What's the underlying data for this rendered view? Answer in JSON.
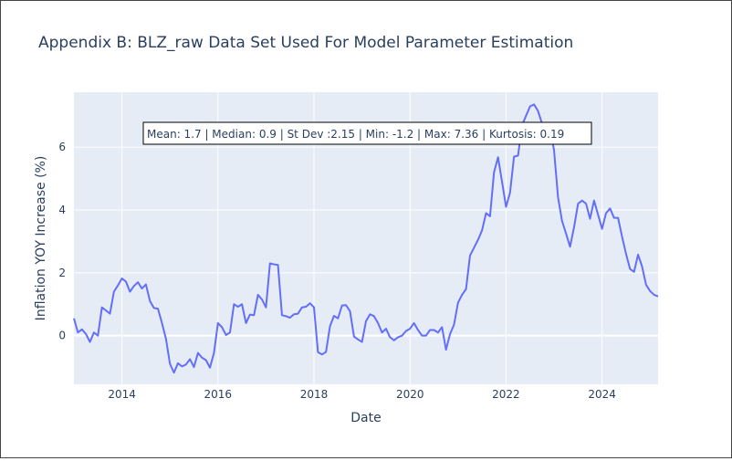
{
  "chart_data": {
    "type": "line",
    "title": "Appendix B: BLZ_raw Data Set Used For Model Parameter Estimation",
    "xlabel": "Date",
    "ylabel": "Inflation YOY Increase (%)",
    "x_range": [
      "2013-01",
      "2025-03"
    ],
    "ylim": [
      -1.55,
      7.75
    ],
    "x_ticks": [
      "2014",
      "2016",
      "2018",
      "2020",
      "2022",
      "2024"
    ],
    "y_ticks": [
      "0",
      "2",
      "4",
      "6"
    ],
    "grid": true,
    "line_color": "#636efa",
    "plot_bg": "#e5ecf6",
    "annotation": "Mean: 1.7 | Median: 0.9 | St Dev :2.15 | Min: -1.2 | Max: 7.36 | Kurtosis: 0.19",
    "series": [
      {
        "x": [
          "2013-01",
          "2013-02",
          "2013-03",
          "2013-04",
          "2013-05",
          "2013-06",
          "2013-07",
          "2013-08",
          "2013-09",
          "2013-10",
          "2013-11",
          "2013-12",
          "2014-01",
          "2014-02",
          "2014-03",
          "2014-04",
          "2014-05",
          "2014-06",
          "2014-07",
          "2014-08",
          "2014-09",
          "2014-10",
          "2014-11",
          "2014-12",
          "2015-01",
          "2015-02",
          "2015-03",
          "2015-04",
          "2015-05",
          "2015-06",
          "2015-07",
          "2015-08",
          "2015-09",
          "2015-10",
          "2015-11",
          "2015-12",
          "2016-01",
          "2016-02",
          "2016-03",
          "2016-04",
          "2016-05",
          "2016-06",
          "2016-07",
          "2016-08",
          "2016-09",
          "2016-10",
          "2016-11",
          "2016-12",
          "2017-01",
          "2017-02",
          "2017-03",
          "2017-04",
          "2017-05",
          "2017-06",
          "2017-07",
          "2017-08",
          "2017-09",
          "2017-10",
          "2017-11",
          "2017-12",
          "2018-01",
          "2018-02",
          "2018-03",
          "2018-04",
          "2018-05",
          "2018-06",
          "2018-07",
          "2018-08",
          "2018-09",
          "2018-10",
          "2018-11",
          "2018-12",
          "2019-01",
          "2019-02",
          "2019-03",
          "2019-04",
          "2019-05",
          "2019-06",
          "2019-07",
          "2019-08",
          "2019-09",
          "2019-10",
          "2019-11",
          "2019-12",
          "2020-01",
          "2020-02",
          "2020-03",
          "2020-04",
          "2020-05",
          "2020-06",
          "2020-07",
          "2020-08",
          "2020-09",
          "2020-10",
          "2020-11",
          "2020-12",
          "2021-01",
          "2021-02",
          "2021-03",
          "2021-04",
          "2021-05",
          "2021-06",
          "2021-07",
          "2021-08",
          "2021-09",
          "2021-10",
          "2021-11",
          "2021-12",
          "2022-01",
          "2022-02",
          "2022-03",
          "2022-04",
          "2022-05",
          "2022-06",
          "2022-07",
          "2022-08",
          "2022-09",
          "2022-10",
          "2022-11",
          "2022-12",
          "2023-01",
          "2023-02",
          "2023-03",
          "2023-04",
          "2023-05",
          "2023-06",
          "2023-07",
          "2023-08",
          "2023-09",
          "2023-10",
          "2023-11",
          "2023-12",
          "2024-01",
          "2024-02",
          "2024-03",
          "2024-04",
          "2024-05",
          "2024-06",
          "2024-07",
          "2024-08",
          "2024-09",
          "2024-10",
          "2024-11",
          "2024-12",
          "2025-01",
          "2025-02",
          "2025-03"
        ],
        "y": [
          0.55,
          0.1,
          0.2,
          0.05,
          -0.2,
          0.1,
          0.0,
          0.9,
          0.8,
          0.7,
          1.4,
          1.6,
          1.82,
          1.72,
          1.4,
          1.58,
          1.7,
          1.5,
          1.63,
          1.1,
          0.88,
          0.86,
          0.4,
          -0.1,
          -0.9,
          -1.18,
          -0.88,
          -0.98,
          -0.92,
          -0.75,
          -1.0,
          -0.55,
          -0.7,
          -0.78,
          -1.02,
          -0.55,
          0.4,
          0.27,
          0.02,
          0.1,
          1.0,
          0.92,
          1.0,
          0.4,
          0.67,
          0.65,
          1.3,
          1.15,
          0.9,
          2.3,
          2.27,
          2.25,
          0.65,
          0.62,
          0.57,
          0.68,
          0.7,
          0.9,
          0.92,
          1.03,
          0.9,
          -0.53,
          -0.6,
          -0.52,
          0.3,
          0.63,
          0.55,
          0.96,
          0.97,
          0.78,
          -0.03,
          -0.12,
          -0.2,
          0.46,
          0.68,
          0.62,
          0.4,
          0.1,
          0.22,
          -0.05,
          -0.15,
          -0.05,
          0.0,
          0.15,
          0.22,
          0.4,
          0.18,
          0.0,
          0.0,
          0.18,
          0.18,
          0.1,
          0.27,
          -0.45,
          0.05,
          0.35,
          1.05,
          1.3,
          1.48,
          2.55,
          2.8,
          3.05,
          3.35,
          3.9,
          3.8,
          5.2,
          5.68,
          4.9,
          4.1,
          4.55,
          5.7,
          5.73,
          6.7,
          7.0,
          7.3,
          7.36,
          7.15,
          6.75,
          6.55,
          6.6,
          5.9,
          4.4,
          3.65,
          3.25,
          2.83,
          3.45,
          4.2,
          4.3,
          4.2,
          3.72,
          4.3,
          3.85,
          3.4,
          3.9,
          4.05,
          3.75,
          3.75,
          3.15,
          2.6,
          2.12,
          2.03,
          2.58,
          2.2,
          1.62,
          1.42,
          1.3,
          1.25
        ]
      }
    ]
  }
}
